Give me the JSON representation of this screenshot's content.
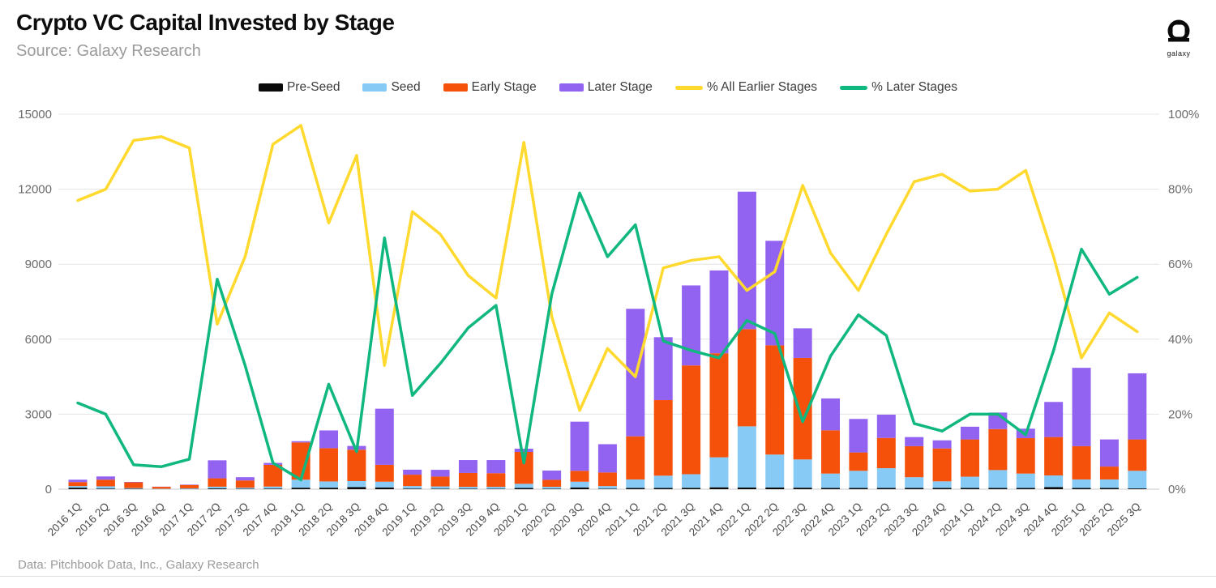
{
  "header": {
    "title": "Crypto VC Capital Invested by Stage",
    "source": "Source: Galaxy Research",
    "logo_caption": "galaxy"
  },
  "footer": {
    "credit": "Data: Pitchbook Data, Inc., Galaxy Research"
  },
  "colors": {
    "pre_seed": "#0a0a0a",
    "seed": "#87CAF5",
    "early_stage": "#F6510A",
    "later_stage": "#9263F0",
    "pct_earlier": "#FFD92E",
    "pct_later": "#10B77F",
    "grid": "#e4e4e4",
    "baseline": "#c9c9c9",
    "axis_text": "#6b6b6b",
    "x_text": "#4a4a4a"
  },
  "chart_data": {
    "type": "combo: stacked bar + line",
    "bar_unit": "US$M (left axis)",
    "line_unit": "percent (right axis)",
    "grid": true,
    "legend_position": "top",
    "categories": [
      "2016 1Q",
      "2016 2Q",
      "2016 3Q",
      "2016 4Q",
      "2017 1Q",
      "2017 2Q",
      "2017 3Q",
      "2017 4Q",
      "2018 1Q",
      "2018 2Q",
      "2018 3Q",
      "2018 4Q",
      "2019 1Q",
      "2019 2Q",
      "2019 3Q",
      "2019 4Q",
      "2020 1Q",
      "2020 2Q",
      "2020 3Q",
      "2020 4Q",
      "2021 1Q",
      "2021 2Q",
      "2021 3Q",
      "2021 4Q",
      "2022 1Q",
      "2022 2Q",
      "2022 3Q",
      "2022 4Q",
      "2023 1Q",
      "2023 2Q",
      "2023 3Q",
      "2023 4Q",
      "2024 1Q",
      "2024 2Q",
      "2024 3Q",
      "2024 4Q",
      "2025 1Q",
      "2025 2Q",
      "2025 3Q"
    ],
    "series": [
      {
        "name": "Pre-Seed",
        "type": "bar",
        "axis": "left",
        "color_key": "pre_seed",
        "values": [
          60,
          25,
          15,
          5,
          10,
          30,
          15,
          25,
          60,
          60,
          85,
          70,
          25,
          20,
          20,
          15,
          50,
          20,
          70,
          20,
          50,
          50,
          55,
          75,
          65,
          65,
          60,
          50,
          50,
          50,
          50,
          50,
          50,
          50,
          50,
          85,
          50,
          50,
          30
        ]
      },
      {
        "name": "Seed",
        "type": "bar",
        "axis": "left",
        "color_key": "seed",
        "values": [
          65,
          90,
          30,
          15,
          25,
          70,
          45,
          80,
          320,
          250,
          240,
          230,
          100,
          90,
          75,
          80,
          165,
          75,
          230,
          105,
          340,
          490,
          545,
          1200,
          2450,
          1320,
          1130,
          575,
          685,
          790,
          430,
          265,
          450,
          715,
          575,
          465,
          340,
          340,
          705
        ]
      },
      {
        "name": "Early Stage",
        "type": "bar",
        "axis": "left",
        "color_key": "early_stage",
        "values": [
          160,
          265,
          230,
          75,
          135,
          335,
          290,
          870,
          1490,
          1330,
          1255,
          675,
          455,
          395,
          555,
          545,
          1275,
          280,
          435,
          545,
          1725,
          3025,
          4350,
          4160,
          3890,
          4370,
          4060,
          1730,
          735,
          1210,
          1240,
          1315,
          1490,
          1640,
          1415,
          1535,
          1330,
          515,
          1255
        ]
      },
      {
        "name": "Later Stage",
        "type": "bar",
        "axis": "left",
        "color_key": "later_stage",
        "values": [
          95,
          130,
          15,
          6,
          15,
          720,
          130,
          75,
          50,
          710,
          150,
          2245,
          200,
          270,
          515,
          525,
          130,
          370,
          1965,
          1130,
          5100,
          2515,
          3200,
          3315,
          5495,
          4180,
          1185,
          1275,
          1340,
          930,
          365,
          325,
          510,
          660,
          380,
          1405,
          3135,
          1085,
          2645
        ]
      },
      {
        "name": "% All Earlier Stages",
        "type": "line",
        "axis": "right",
        "color_key": "pct_earlier",
        "values": [
          77,
          80,
          93,
          94,
          91,
          44,
          62,
          92,
          97,
          71,
          89,
          33,
          74,
          68,
          57,
          51,
          92.5,
          46,
          21,
          37.5,
          30,
          59,
          61,
          62,
          53,
          58,
          81,
          63,
          53,
          68,
          82,
          84,
          79.5,
          80,
          85,
          62,
          35,
          47,
          42
        ]
      },
      {
        "name": "% Later Stages",
        "type": "line",
        "axis": "right",
        "color_key": "pct_later",
        "values": [
          23,
          20,
          6.5,
          6,
          8,
          56,
          33,
          7,
          2.5,
          28,
          10,
          67,
          25,
          33.5,
          43,
          49,
          7,
          52,
          79,
          62,
          70.5,
          39.5,
          37,
          35,
          45,
          41.5,
          18,
          35.5,
          46.5,
          41,
          17.5,
          15.5,
          20,
          20,
          14.5,
          37,
          64,
          52,
          56.5
        ]
      }
    ],
    "left_axis": {
      "ticks": [
        0,
        3000,
        6000,
        9000,
        12000,
        15000
      ],
      "max": 15000
    },
    "right_axis": {
      "ticks": [
        "0%",
        "20%",
        "40%",
        "60%",
        "80%",
        "100%"
      ],
      "tick_values": [
        0,
        20,
        40,
        60,
        80,
        100
      ],
      "max": 100
    }
  }
}
